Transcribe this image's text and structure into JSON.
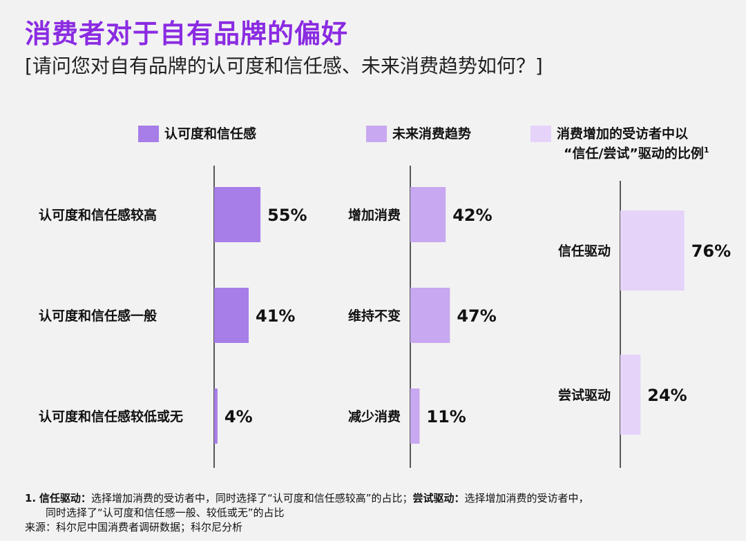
{
  "header": {
    "title": "消费者对于自有品牌的偏好",
    "subtitle": "[请问您对自有品牌的认可度和信任感、未来消费趋势如何？]"
  },
  "legend": [
    {
      "label": "认可度和信任感",
      "color": "#a77de8"
    },
    {
      "label": "未来消费趋势",
      "color": "#c8a8f0"
    },
    {
      "label_line1": "消费增加的受访者中以",
      "label_line2": "“信任/尝试”驱动的比例",
      "sup": "1",
      "color": "#e6d3fa"
    }
  ],
  "chart_data": [
    {
      "type": "bar",
      "orientation": "horizontal",
      "series": [
        {
          "name": "认可度和信任感",
          "values": [
            55,
            41,
            4
          ]
        }
      ],
      "categories": [
        "认可度和信任感较高",
        "认可度和信任感一般",
        "认可度和信任感较低或无"
      ],
      "value_labels": [
        "55%",
        "41%",
        "4%"
      ],
      "unit": "%",
      "color": "#a77de8"
    },
    {
      "type": "bar",
      "orientation": "horizontal",
      "series": [
        {
          "name": "未来消费趋势",
          "values": [
            42,
            47,
            11
          ]
        }
      ],
      "categories": [
        "增加消费",
        "维持不变",
        "减少消费"
      ],
      "value_labels": [
        "42%",
        "47%",
        "11%"
      ],
      "unit": "%",
      "color": "#c8a8f0"
    },
    {
      "type": "bar",
      "orientation": "horizontal",
      "series": [
        {
          "name": "消费增加的受访者中以“信任/尝试”驱动的比例",
          "values": [
            76,
            24
          ]
        }
      ],
      "categories": [
        "信任驱动",
        "尝试驱动"
      ],
      "value_labels": [
        "76%",
        "24%"
      ],
      "unit": "%",
      "color": "#e6d3fa"
    }
  ],
  "footnotes": {
    "note1_num": "1.",
    "note1_term1": "信任驱动：",
    "note1_text1": "选择增加消费的受访者中，同时选择了“认可度和信任感较高”的占比；",
    "note1_term2": "尝试驱动：",
    "note1_text2": "选择增加消费的受访者中，",
    "note1_line2": "同时选择了“认可度和信任感一般、较低或无”的占比",
    "source": "来源：科尔尼中国消费者调研数据；科尔尼分析"
  }
}
